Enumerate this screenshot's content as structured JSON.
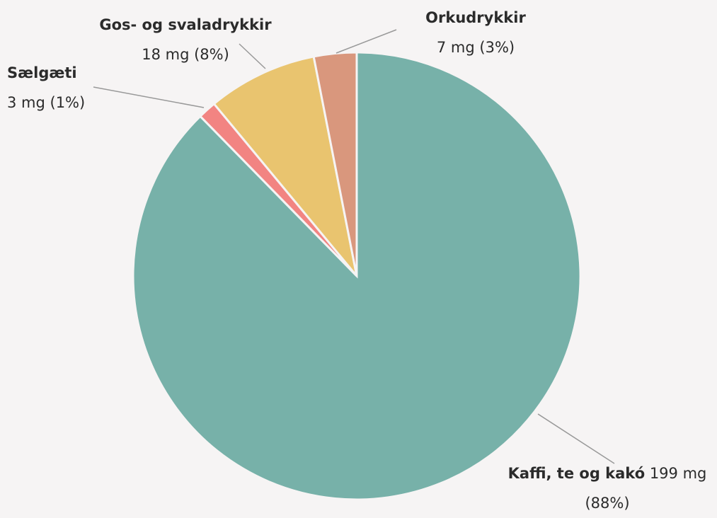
{
  "chart_data": {
    "type": "pie",
    "categories": [
      "Kaffi, te og kakó",
      "Sælgæti",
      "Gos- og svaladrykkir",
      "Orkudrykkir"
    ],
    "values": [
      199,
      3,
      18,
      7
    ],
    "value_labels": [
      "199 mg (88%)",
      "3 mg (1%)",
      "18 mg (8%)",
      "7 mg (3%)"
    ],
    "colors": [
      "#77b1a9",
      "#f28482",
      "#e9c46f",
      "#d9977d"
    ]
  }
}
